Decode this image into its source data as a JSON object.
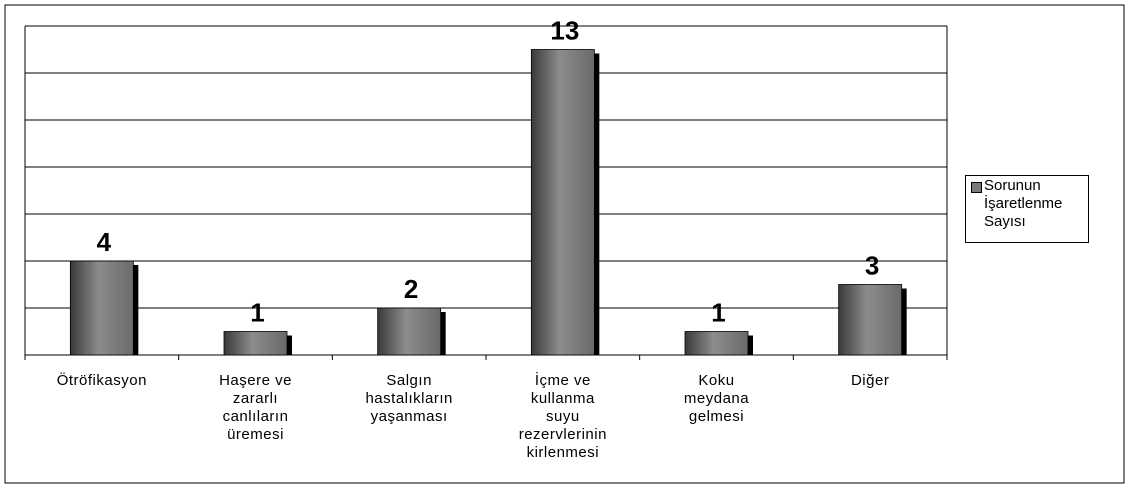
{
  "chart_data": {
    "type": "bar",
    "categories": [
      "Ötröfikasyon",
      "Haşere ve\nzararlı\ncanlıların\nüremesi",
      "Salgın\nhastalıkların\nyaşanması",
      "İçme ve\nkullanma\nsuyu\nrezervlerinin\nkirlenmesi",
      "Koku\nmeydana\ngelmesi",
      "Diğer"
    ],
    "series": [
      {
        "name": "Sorunun\nİşaretlenme\nSayısı",
        "color": "#7a7a7a",
        "values": [
          4,
          1,
          2,
          13,
          1,
          3
        ]
      }
    ],
    "ylim": [
      0,
      14
    ],
    "yticks": [
      0,
      2,
      4,
      6,
      8,
      10,
      12,
      14
    ],
    "grid": true,
    "legend": "right"
  }
}
